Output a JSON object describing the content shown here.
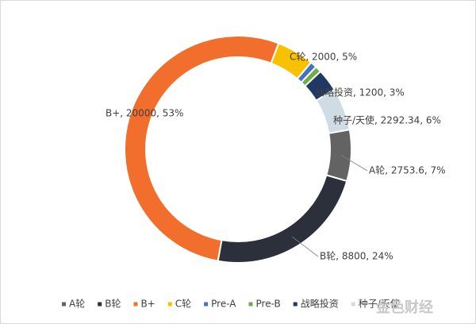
{
  "chart_data": {
    "type": "donut",
    "categories": [
      "A轮",
      "B轮",
      "B+",
      "C轮",
      "Pre-A",
      "Pre-B",
      "战略投资",
      "种子/天使"
    ],
    "values": [
      2753.6,
      8800,
      20000,
      2000,
      350,
      340,
      1200,
      2292.34
    ],
    "value_labels": [
      "A轮, 2753.6, 7%",
      "B轮, 8800, 24%",
      "B+, 20000, 53%",
      "C轮, 2000, 5%",
      null,
      null,
      "战略投资, 1200, 3%",
      "种子/天使, 2292.34, 6%"
    ],
    "colors": [
      "#636363",
      "#2b303a",
      "#f26e2c",
      "#f7c100",
      "#4472c4",
      "#70ad47",
      "#203864",
      "#cfdce3"
    ],
    "legend": "bottom",
    "watermark": "金色财经"
  }
}
